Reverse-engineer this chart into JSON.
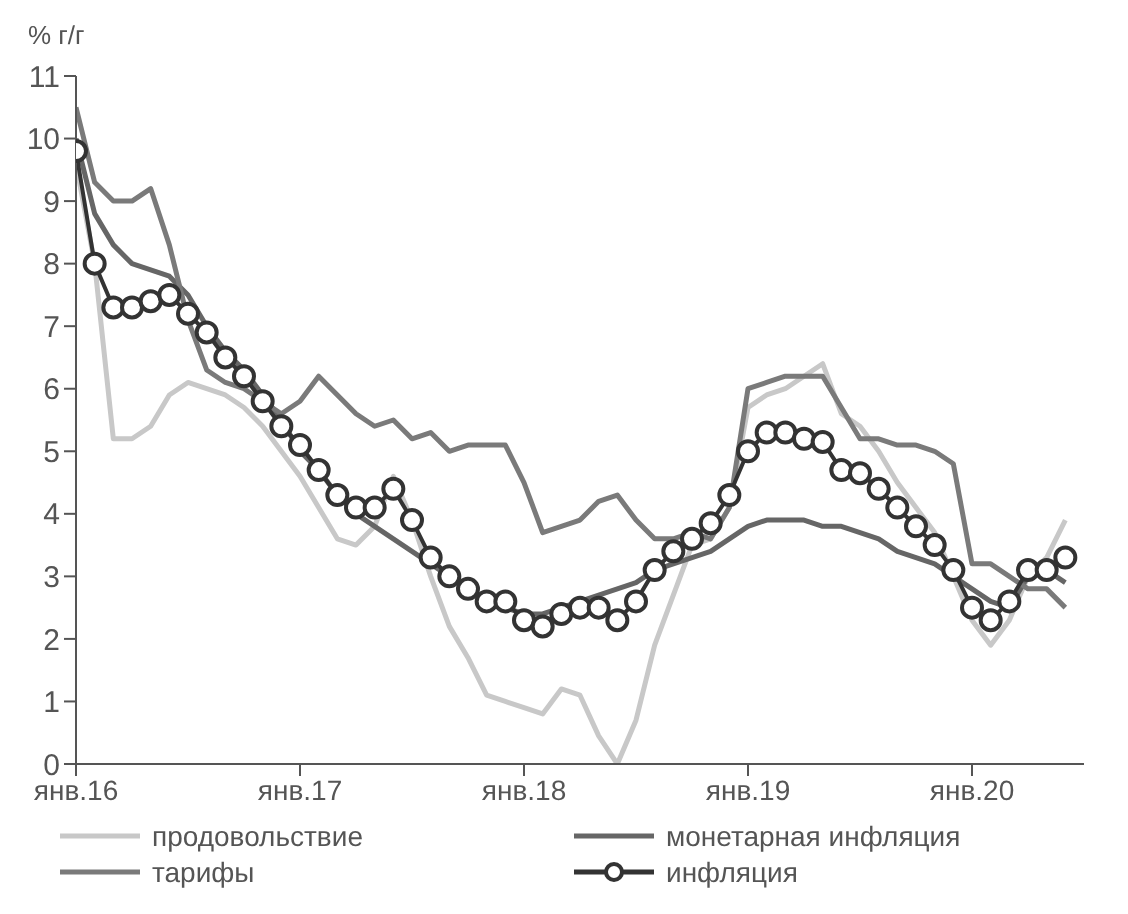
{
  "chart_data": {
    "type": "line",
    "ylabel": "% г/г",
    "x": [
      "2016-01",
      "2016-02",
      "2016-03",
      "2016-04",
      "2016-05",
      "2016-06",
      "2016-07",
      "2016-08",
      "2016-09",
      "2016-10",
      "2016-11",
      "2016-12",
      "2017-01",
      "2017-02",
      "2017-03",
      "2017-04",
      "2017-05",
      "2017-06",
      "2017-07",
      "2017-08",
      "2017-09",
      "2017-10",
      "2017-11",
      "2017-12",
      "2018-01",
      "2018-02",
      "2018-03",
      "2018-04",
      "2018-05",
      "2018-06",
      "2018-07",
      "2018-08",
      "2018-09",
      "2018-10",
      "2018-11",
      "2018-12",
      "2019-01",
      "2019-02",
      "2019-03",
      "2019-04",
      "2019-05",
      "2019-06",
      "2019-07",
      "2019-08",
      "2019-09",
      "2019-10",
      "2019-11",
      "2019-12",
      "2020-01",
      "2020-02",
      "2020-03",
      "2020-04",
      "2020-05",
      "2020-06"
    ],
    "series": [
      {
        "name": "продовольствие",
        "color": "#c8c8c8",
        "marker": "none",
        "values": [
          9.6,
          8.0,
          5.2,
          5.2,
          5.4,
          5.9,
          6.1,
          6.0,
          5.9,
          5.7,
          5.4,
          5.0,
          4.6,
          4.1,
          3.6,
          3.5,
          3.8,
          4.6,
          3.9,
          3.0,
          2.2,
          1.7,
          1.1,
          1.0,
          0.9,
          0.8,
          1.2,
          1.1,
          0.45,
          0.0,
          0.7,
          1.9,
          2.7,
          3.5,
          3.6,
          4.1,
          5.7,
          5.9,
          6.0,
          6.2,
          6.4,
          5.6,
          5.4,
          5.0,
          4.5,
          4.1,
          3.7,
          3.0,
          2.3,
          1.9,
          2.3,
          3.0,
          3.3,
          3.9
        ]
      },
      {
        "name": "монетарная инфляция",
        "color": "#666666",
        "marker": "none",
        "values": [
          10.0,
          8.8,
          8.3,
          8.0,
          7.9,
          7.8,
          7.5,
          7.0,
          6.6,
          6.3,
          5.9,
          5.5,
          5.0,
          4.7,
          4.3,
          4.0,
          3.8,
          3.6,
          3.4,
          3.2,
          3.0,
          2.8,
          2.6,
          2.5,
          2.4,
          2.4,
          2.5,
          2.6,
          2.7,
          2.8,
          2.9,
          3.1,
          3.2,
          3.3,
          3.4,
          3.6,
          3.8,
          3.9,
          3.9,
          3.9,
          3.8,
          3.8,
          3.7,
          3.6,
          3.4,
          3.3,
          3.2,
          3.0,
          2.8,
          2.6,
          2.5,
          3.0,
          3.1,
          2.9
        ]
      },
      {
        "name": "тарифы",
        "color": "#7a7a7a",
        "marker": "none",
        "values": [
          10.5,
          9.3,
          9.0,
          9.0,
          9.2,
          8.3,
          7.1,
          6.3,
          6.1,
          6.0,
          5.8,
          5.6,
          5.8,
          6.2,
          5.9,
          5.6,
          5.4,
          5.5,
          5.2,
          5.3,
          5.0,
          5.1,
          5.1,
          5.1,
          4.5,
          3.7,
          3.8,
          3.9,
          4.2,
          4.3,
          3.9,
          3.6,
          3.6,
          3.7,
          3.6,
          4.1,
          6.0,
          6.1,
          6.2,
          6.2,
          6.2,
          5.7,
          5.2,
          5.2,
          5.1,
          5.1,
          5.0,
          4.8,
          3.2,
          3.2,
          3.0,
          2.8,
          2.8,
          2.5
        ]
      },
      {
        "name": "инфляция",
        "color": "#333333",
        "marker": "circle",
        "values": [
          9.8,
          8.0,
          7.3,
          7.3,
          7.4,
          7.5,
          7.2,
          6.9,
          6.5,
          6.2,
          5.8,
          5.4,
          5.1,
          4.7,
          4.3,
          4.1,
          4.1,
          4.4,
          3.9,
          3.3,
          3.0,
          2.8,
          2.6,
          2.6,
          2.3,
          2.2,
          2.4,
          2.5,
          2.5,
          2.3,
          2.6,
          3.1,
          3.4,
          3.6,
          3.85,
          4.3,
          5.0,
          5.3,
          5.3,
          5.2,
          5.15,
          4.7,
          4.65,
          4.4,
          4.1,
          3.8,
          3.5,
          3.1,
          2.5,
          2.3,
          2.6,
          3.1,
          3.1,
          3.3
        ]
      }
    ],
    "xlim": [
      "2016-01",
      "2020-07"
    ],
    "xticks": [
      {
        "value": "2016-01",
        "label": "янв.16"
      },
      {
        "value": "2017-01",
        "label": "янв.17"
      },
      {
        "value": "2018-01",
        "label": "янв.18"
      },
      {
        "value": "2019-01",
        "label": "янв.19"
      },
      {
        "value": "2020-01",
        "label": "янв.20"
      }
    ],
    "ylim": [
      0,
      11
    ],
    "yticks": [
      0,
      1,
      2,
      3,
      4,
      5,
      6,
      7,
      8,
      9,
      10,
      11
    ],
    "grid": false,
    "legend": "bottom",
    "line_style": "solid"
  }
}
